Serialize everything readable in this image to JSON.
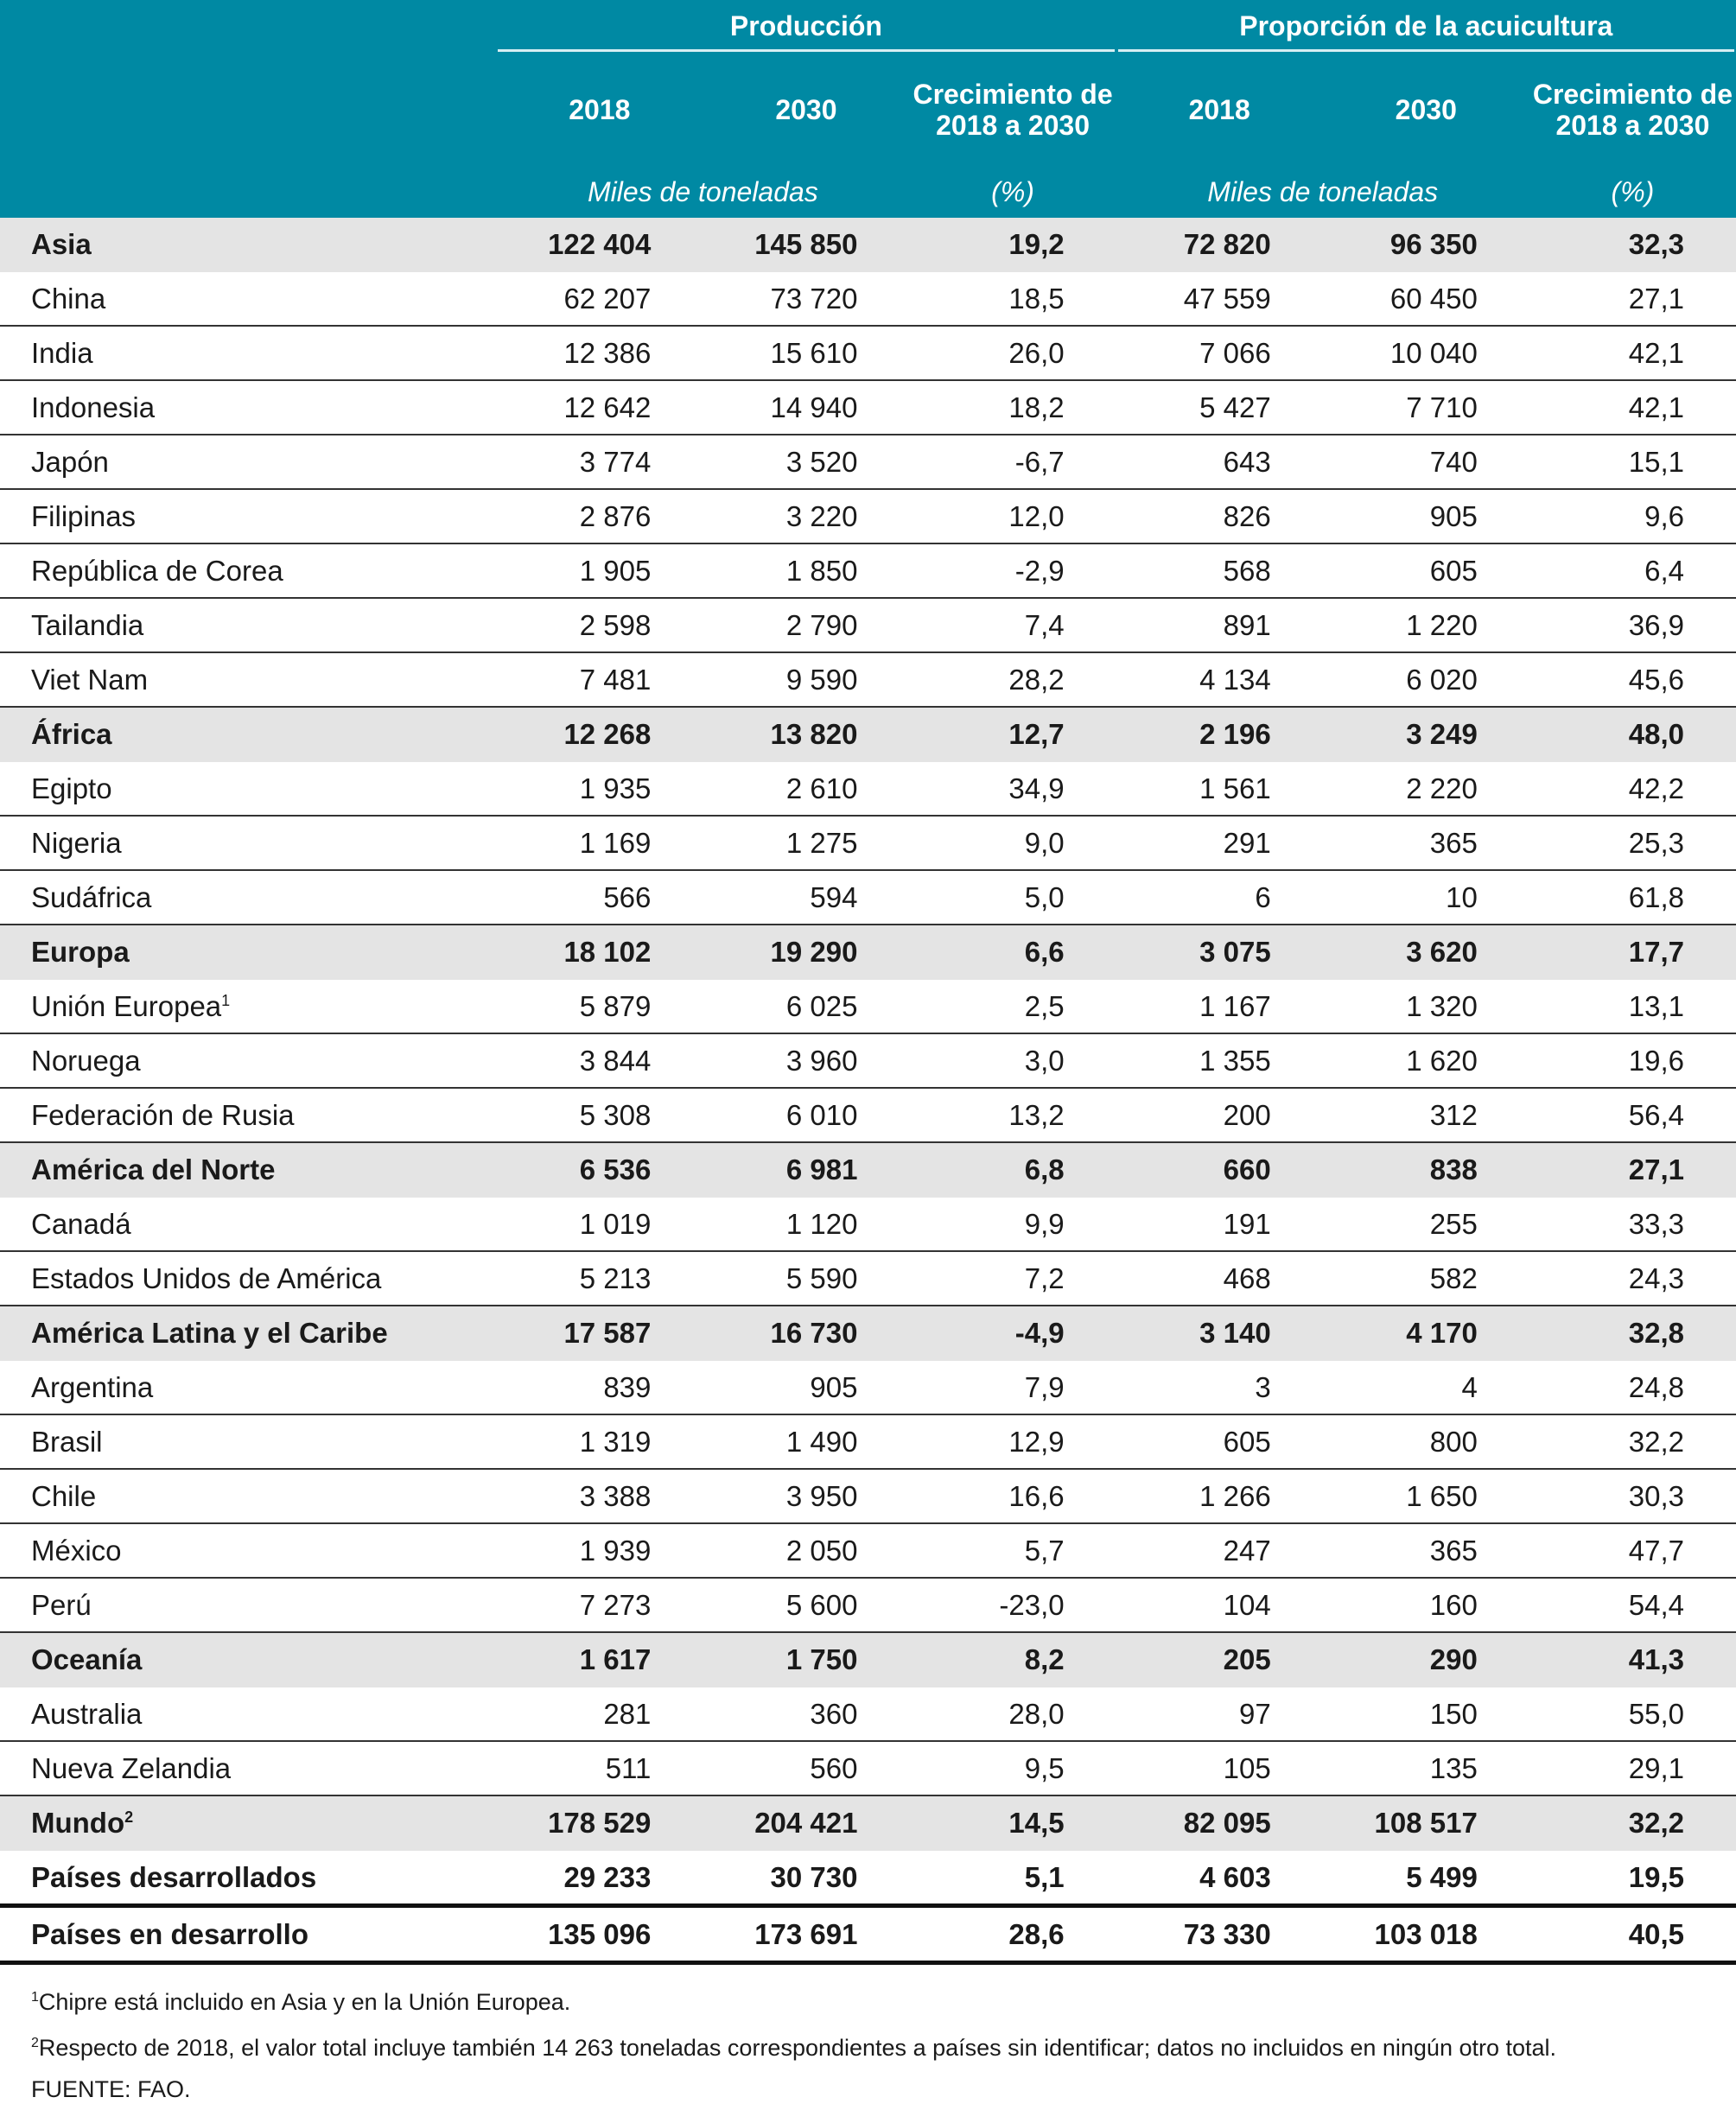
{
  "header": {
    "group_production": "Producción",
    "group_aquaculture": "Proporción de la acuicultura",
    "col_2018": "2018",
    "col_2030": "2030",
    "col_growth": "Crecimiento de 2018 a 2030",
    "unit_tonnes": "Miles de toneladas",
    "unit_percent": "(%)"
  },
  "rows": [
    {
      "label": "Asia",
      "sup": "",
      "type": "region",
      "v": [
        "122 404",
        "145 850",
        "19,2",
        "72 820",
        "96 350",
        "32,3"
      ]
    },
    {
      "label": "China",
      "sup": "",
      "type": "",
      "v": [
        "62 207",
        "73 720",
        "18,5",
        "47 559",
        "60 450",
        "27,1"
      ]
    },
    {
      "label": "India",
      "sup": "",
      "type": "",
      "v": [
        "12 386",
        "15 610",
        "26,0",
        "7 066",
        "10 040",
        "42,1"
      ]
    },
    {
      "label": "Indonesia",
      "sup": "",
      "type": "",
      "v": [
        "12 642",
        "14 940",
        "18,2",
        "5 427",
        "7 710",
        "42,1"
      ]
    },
    {
      "label": "Japón",
      "sup": "",
      "type": "",
      "v": [
        "3 774",
        "3 520",
        "-6,7",
        "643",
        "740",
        "15,1"
      ]
    },
    {
      "label": "Filipinas",
      "sup": "",
      "type": "",
      "v": [
        "2 876",
        "3 220",
        "12,0",
        "826",
        "905",
        "9,6"
      ]
    },
    {
      "label": "República de Corea",
      "sup": "",
      "type": "",
      "v": [
        "1 905",
        "1 850",
        "-2,9",
        "568",
        "605",
        "6,4"
      ]
    },
    {
      "label": "Tailandia",
      "sup": "",
      "type": "",
      "v": [
        "2 598",
        "2 790",
        "7,4",
        "891",
        "1 220",
        "36,9"
      ]
    },
    {
      "label": "Viet Nam",
      "sup": "",
      "type": "",
      "v": [
        "7 481",
        "9 590",
        "28,2",
        "4 134",
        "6 020",
        "45,6"
      ]
    },
    {
      "label": "África",
      "sup": "",
      "type": "region",
      "v": [
        "12 268",
        "13 820",
        "12,7",
        "2 196",
        "3 249",
        "48,0"
      ]
    },
    {
      "label": "Egipto",
      "sup": "",
      "type": "",
      "v": [
        "1 935",
        "2 610",
        "34,9",
        "1 561",
        "2 220",
        "42,2"
      ]
    },
    {
      "label": "Nigeria",
      "sup": "",
      "type": "",
      "v": [
        "1 169",
        "1 275",
        "9,0",
        "291",
        "365",
        "25,3"
      ]
    },
    {
      "label": "Sudáfrica",
      "sup": "",
      "type": "",
      "v": [
        "566",
        "594",
        "5,0",
        "6",
        "10",
        "61,8"
      ]
    },
    {
      "label": "Europa",
      "sup": "",
      "type": "region",
      "v": [
        "18 102",
        "19 290",
        "6,6",
        "3 075",
        "3 620",
        "17,7"
      ]
    },
    {
      "label": "Unión Europea",
      "sup": "1",
      "type": "",
      "v": [
        "5 879",
        "6 025",
        "2,5",
        "1 167",
        "1 320",
        "13,1"
      ]
    },
    {
      "label": "Noruega",
      "sup": "",
      "type": "",
      "v": [
        "3 844",
        "3 960",
        "3,0",
        "1 355",
        "1 620",
        "19,6"
      ]
    },
    {
      "label": "Federación de Rusia",
      "sup": "",
      "type": "",
      "v": [
        "5 308",
        "6 010",
        "13,2",
        "200",
        "312",
        "56,4"
      ]
    },
    {
      "label": "América del Norte",
      "sup": "",
      "type": "region",
      "v": [
        "6 536",
        "6 981",
        "6,8",
        "660",
        "838",
        "27,1"
      ]
    },
    {
      "label": "Canadá",
      "sup": "",
      "type": "",
      "v": [
        "1 019",
        "1 120",
        "9,9",
        "191",
        "255",
        "33,3"
      ]
    },
    {
      "label": "Estados Unidos de América",
      "sup": "",
      "type": "",
      "v": [
        "5 213",
        "5 590",
        "7,2",
        "468",
        "582",
        "24,3"
      ]
    },
    {
      "label": "América Latina y el Caribe",
      "sup": "",
      "type": "region",
      "v": [
        "17 587",
        "16 730",
        "-4,9",
        "3 140",
        "4 170",
        "32,8"
      ]
    },
    {
      "label": "Argentina",
      "sup": "",
      "type": "",
      "v": [
        "839",
        "905",
        "7,9",
        "3",
        "4",
        "24,8"
      ]
    },
    {
      "label": "Brasil",
      "sup": "",
      "type": "",
      "v": [
        "1 319",
        "1 490",
        "12,9",
        "605",
        "800",
        "32,2"
      ]
    },
    {
      "label": "Chile",
      "sup": "",
      "type": "",
      "v": [
        "3 388",
        "3 950",
        "16,6",
        "1 266",
        "1 650",
        "30,3"
      ]
    },
    {
      "label": "México",
      "sup": "",
      "type": "",
      "v": [
        "1 939",
        "2 050",
        "5,7",
        "247",
        "365",
        "47,7"
      ]
    },
    {
      "label": "Perú",
      "sup": "",
      "type": "",
      "v": [
        "7 273",
        "5 600",
        "-23,0",
        "104",
        "160",
        "54,4"
      ]
    },
    {
      "label": "Oceanía",
      "sup": "",
      "type": "region",
      "v": [
        "1 617",
        "1 750",
        "8,2",
        "205",
        "290",
        "41,3"
      ]
    },
    {
      "label": "Australia",
      "sup": "",
      "type": "",
      "v": [
        "281",
        "360",
        "28,0",
        "97",
        "150",
        "55,0"
      ]
    },
    {
      "label": "Nueva Zelandia",
      "sup": "",
      "type": "",
      "v": [
        "511",
        "560",
        "9,5",
        "105",
        "135",
        "29,1"
      ]
    },
    {
      "label": "Mundo",
      "sup": "2",
      "type": "region",
      "v": [
        "178 529",
        "204 421",
        "14,5",
        "82 095",
        "108 517",
        "32,2"
      ]
    },
    {
      "label": "Países desarrollados",
      "sup": "",
      "type": "bold thick",
      "v": [
        "29 233",
        "30 730",
        "5,1",
        "4 603",
        "5 499",
        "19,5"
      ]
    },
    {
      "label": "Países en desarrollo",
      "sup": "",
      "type": "bold thick",
      "v": [
        "135 096",
        "173 691",
        "28,6",
        "73 330",
        "103 018",
        "40,5"
      ]
    }
  ],
  "notes": {
    "n1_mark": "1",
    "n1": "Chipre está incluido en Asia y en la Unión Europea.",
    "n2_mark": "2",
    "n2": "Respecto de 2018, el valor total incluye también 14 263 toneladas correspondientes a países sin identificar; datos no incluidos en ningún otro total.",
    "source": "FUENTE: FAO."
  },
  "colors": {
    "header_bg": "#0089a3",
    "region_bg": "#e4e4e4"
  }
}
